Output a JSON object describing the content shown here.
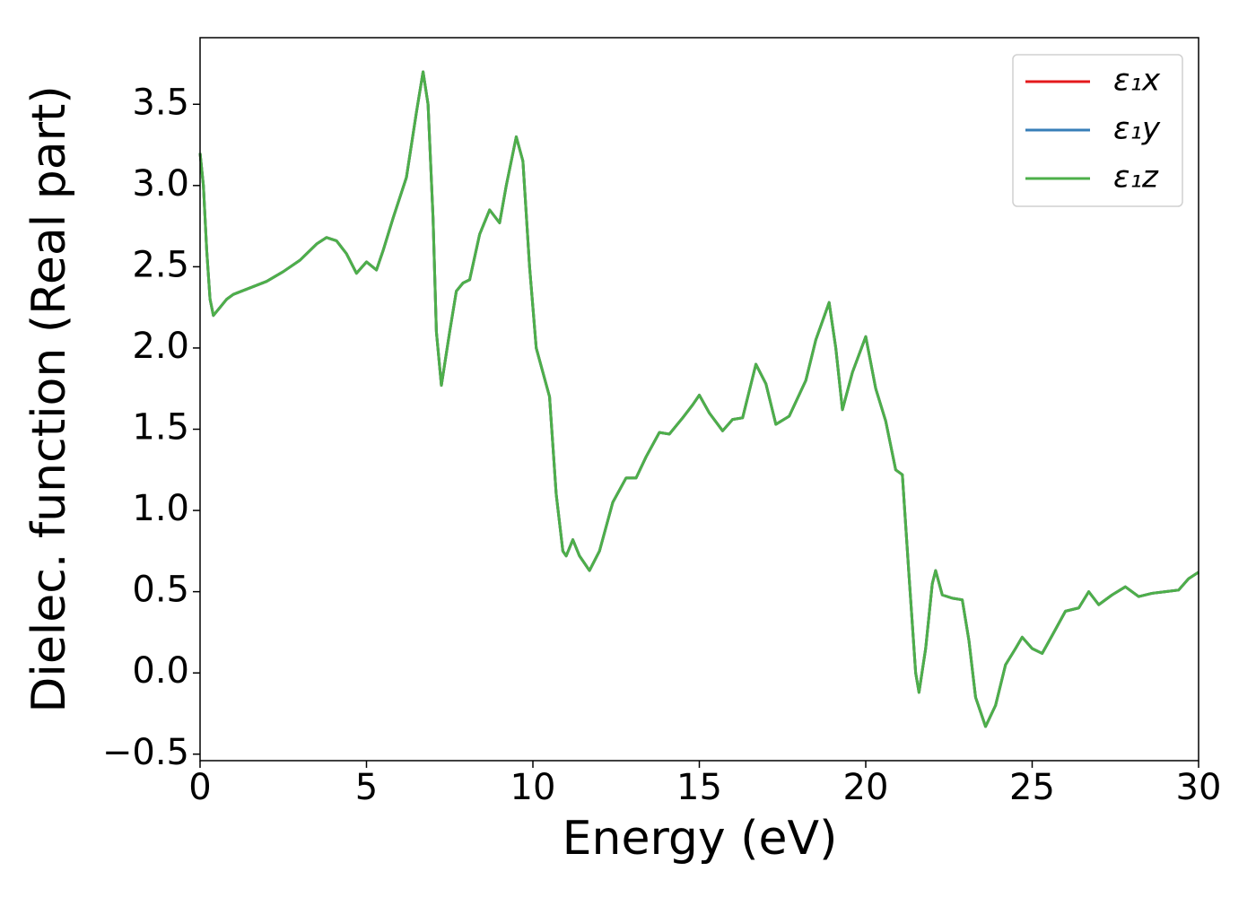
{
  "chart_data": {
    "type": "line",
    "xlabel": "Energy (eV)",
    "ylabel": "Dielec. function (Real part)",
    "xlim": [
      0,
      30
    ],
    "ylim": [
      -0.54,
      3.91
    ],
    "xticks": [
      0,
      5,
      10,
      15,
      20,
      25,
      30
    ],
    "yticks": [
      {
        "value": -0.5,
        "label": "−0.5"
      },
      {
        "value": 0,
        "label": "0.0"
      },
      0.5,
      {
        "value": 1,
        "label": "1.0"
      },
      1.5,
      {
        "value": 2,
        "label": "2.0"
      },
      2.5,
      {
        "value": 3,
        "label": "3.0"
      },
      3.5
    ],
    "grid": false,
    "legend": "upper right",
    "x": [
      0,
      0.1,
      0.2,
      0.3,
      0.4,
      0.6,
      0.8,
      1.0,
      1.5,
      2.0,
      2.5,
      3.0,
      3.5,
      3.8,
      4.1,
      4.4,
      4.7,
      5.0,
      5.3,
      5.5,
      5.8,
      6.2,
      6.5,
      6.7,
      6.85,
      7.0,
      7.1,
      7.25,
      7.5,
      7.7,
      7.9,
      8.1,
      8.4,
      8.7,
      9.0,
      9.2,
      9.5,
      9.7,
      9.9,
      10.1,
      10.3,
      10.5,
      10.7,
      10.9,
      11.0,
      11.2,
      11.4,
      11.7,
      12.0,
      12.4,
      12.8,
      13.1,
      13.4,
      13.8,
      14.1,
      14.5,
      14.8,
      15.0,
      15.3,
      15.7,
      16.0,
      16.3,
      16.7,
      17.0,
      17.3,
      17.7,
      18.2,
      18.5,
      18.9,
      19.1,
      19.3,
      19.6,
      20.0,
      20.3,
      20.6,
      20.9,
      21.1,
      21.3,
      21.5,
      21.6,
      21.8,
      22.0,
      22.1,
      22.3,
      22.6,
      22.9,
      23.1,
      23.3,
      23.6,
      23.9,
      24.2,
      24.5,
      24.7,
      25.0,
      25.3,
      25.6,
      26.0,
      26.4,
      26.7,
      27.0,
      27.4,
      27.8,
      28.2,
      28.6,
      29.0,
      29.4,
      29.7,
      30.0
    ],
    "series": [
      {
        "name": "ε₁x",
        "color": "#e41a1c",
        "values": [
          3.2,
          3.0,
          2.6,
          2.3,
          2.2,
          2.25,
          2.3,
          2.33,
          2.37,
          2.41,
          2.47,
          2.54,
          2.64,
          2.68,
          2.66,
          2.58,
          2.46,
          2.53,
          2.48,
          2.6,
          2.8,
          3.05,
          3.45,
          3.7,
          3.5,
          2.8,
          2.1,
          1.77,
          2.1,
          2.35,
          2.4,
          2.42,
          2.7,
          2.85,
          2.77,
          3.0,
          3.3,
          3.15,
          2.5,
          2.0,
          1.85,
          1.7,
          1.1,
          0.75,
          0.72,
          0.82,
          0.72,
          0.63,
          0.75,
          1.05,
          1.2,
          1.2,
          1.33,
          1.48,
          1.47,
          1.57,
          1.65,
          1.71,
          1.6,
          1.49,
          1.56,
          1.57,
          1.9,
          1.78,
          1.53,
          1.58,
          1.8,
          2.05,
          2.28,
          2.0,
          1.62,
          1.85,
          2.07,
          1.75,
          1.55,
          1.25,
          1.22,
          0.6,
          0.0,
          -0.12,
          0.15,
          0.55,
          0.63,
          0.48,
          0.46,
          0.45,
          0.2,
          -0.15,
          -0.33,
          -0.2,
          0.05,
          0.15,
          0.22,
          0.15,
          0.12,
          0.23,
          0.38,
          0.4,
          0.5,
          0.42,
          0.48,
          0.53,
          0.47,
          0.49,
          0.5,
          0.51,
          0.58,
          0.62
        ]
      },
      {
        "name": "ε₁y",
        "color": "#377eb8",
        "values": [
          3.2,
          3.0,
          2.6,
          2.3,
          2.2,
          2.25,
          2.3,
          2.33,
          2.37,
          2.41,
          2.47,
          2.54,
          2.64,
          2.68,
          2.66,
          2.58,
          2.46,
          2.53,
          2.48,
          2.6,
          2.8,
          3.05,
          3.45,
          3.7,
          3.5,
          2.8,
          2.1,
          1.77,
          2.1,
          2.35,
          2.4,
          2.42,
          2.7,
          2.85,
          2.77,
          3.0,
          3.3,
          3.15,
          2.5,
          2.0,
          1.85,
          1.7,
          1.1,
          0.75,
          0.72,
          0.82,
          0.72,
          0.63,
          0.75,
          1.05,
          1.2,
          1.2,
          1.33,
          1.48,
          1.47,
          1.57,
          1.65,
          1.71,
          1.6,
          1.49,
          1.56,
          1.57,
          1.9,
          1.78,
          1.53,
          1.58,
          1.8,
          2.05,
          2.28,
          2.0,
          1.62,
          1.85,
          2.07,
          1.75,
          1.55,
          1.25,
          1.22,
          0.6,
          0.0,
          -0.12,
          0.15,
          0.55,
          0.63,
          0.48,
          0.46,
          0.45,
          0.2,
          -0.15,
          -0.33,
          -0.2,
          0.05,
          0.15,
          0.22,
          0.15,
          0.12,
          0.23,
          0.38,
          0.4,
          0.5,
          0.42,
          0.48,
          0.53,
          0.47,
          0.49,
          0.5,
          0.51,
          0.58,
          0.62
        ]
      },
      {
        "name": "ε₁z",
        "color": "#4daf4a",
        "values": [
          3.2,
          3.0,
          2.6,
          2.3,
          2.2,
          2.25,
          2.3,
          2.33,
          2.37,
          2.41,
          2.47,
          2.54,
          2.64,
          2.68,
          2.66,
          2.58,
          2.46,
          2.53,
          2.48,
          2.6,
          2.8,
          3.05,
          3.45,
          3.7,
          3.5,
          2.8,
          2.1,
          1.77,
          2.1,
          2.35,
          2.4,
          2.42,
          2.7,
          2.85,
          2.77,
          3.0,
          3.3,
          3.15,
          2.5,
          2.0,
          1.85,
          1.7,
          1.1,
          0.75,
          0.72,
          0.82,
          0.72,
          0.63,
          0.75,
          1.05,
          1.2,
          1.2,
          1.33,
          1.48,
          1.47,
          1.57,
          1.65,
          1.71,
          1.6,
          1.49,
          1.56,
          1.57,
          1.9,
          1.78,
          1.53,
          1.58,
          1.8,
          2.05,
          2.28,
          2.0,
          1.62,
          1.85,
          2.07,
          1.75,
          1.55,
          1.25,
          1.22,
          0.6,
          0.0,
          -0.12,
          0.15,
          0.55,
          0.63,
          0.48,
          0.46,
          0.45,
          0.2,
          -0.15,
          -0.33,
          -0.2,
          0.05,
          0.15,
          0.22,
          0.15,
          0.12,
          0.23,
          0.38,
          0.4,
          0.5,
          0.42,
          0.48,
          0.53,
          0.47,
          0.49,
          0.5,
          0.51,
          0.58,
          0.62
        ]
      }
    ]
  }
}
